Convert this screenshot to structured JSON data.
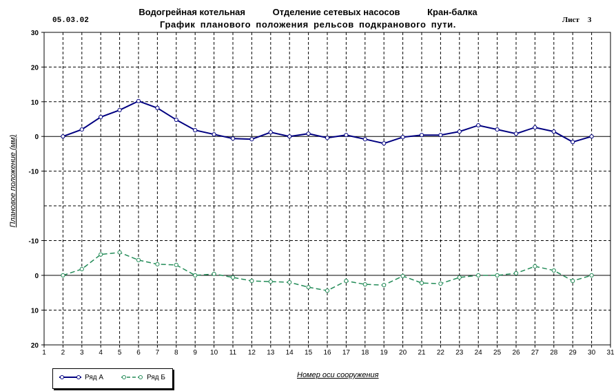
{
  "header": {
    "date": "05.03.02",
    "title_parts": [
      "Водогрейная котельная",
      "Отделение сетевых насосов",
      "Кран-балка"
    ],
    "subtitle": "График планового положения рельсов подкранового пути.",
    "sheet_label": "Лист",
    "sheet_number": "3"
  },
  "chart_data": {
    "type": "line",
    "xlabel": "Номер оси сооружения",
    "ylabel": "Плановое положение (мм)",
    "x_ticks": [
      1,
      2,
      3,
      4,
      5,
      6,
      7,
      8,
      9,
      10,
      11,
      12,
      13,
      14,
      15,
      16,
      17,
      18,
      19,
      20,
      21,
      22,
      23,
      24,
      25,
      26,
      27,
      28,
      29,
      30,
      31
    ],
    "xlim": [
      1,
      31
    ],
    "x": [
      2,
      3,
      4,
      5,
      6,
      7,
      8,
      9,
      10,
      11,
      12,
      13,
      14,
      15,
      16,
      17,
      18,
      19,
      20,
      21,
      22,
      23,
      24,
      25,
      26,
      27,
      28,
      29,
      30
    ],
    "upper_panel": {
      "ylim": [
        -20,
        30
      ],
      "y_ticks": [
        30,
        20,
        10,
        0,
        -10
      ],
      "y_tick_labels": [
        "30",
        "20",
        "10",
        "0",
        "-10"
      ]
    },
    "lower_panel": {
      "ylim": [
        -20,
        20
      ],
      "inverted": true,
      "y_ticks": [
        -10,
        0,
        10,
        20
      ],
      "y_tick_labels": [
        "-10",
        "0",
        "10",
        "20"
      ]
    },
    "grid": true,
    "grid_style": "dashed",
    "series": [
      {
        "name": "Ряд А",
        "panel": "upper",
        "color": "#000080",
        "line_style": "solid",
        "values": [
          0,
          2,
          5.6,
          7.6,
          10.2,
          8.2,
          4.8,
          1.8,
          0.6,
          -0.6,
          -0.8,
          1.2,
          0,
          0.8,
          -0.4,
          0.4,
          -0.8,
          -2,
          -0.2,
          0.4,
          0.4,
          1.4,
          3.2,
          2,
          0.8,
          2.6,
          1.4,
          -1.6,
          0
        ]
      },
      {
        "name": "Ряд Б",
        "panel": "lower",
        "color": "#228b57",
        "line_style": "dashed",
        "values": [
          0,
          -1.8,
          -6,
          -6.6,
          -4.4,
          -3.2,
          -3,
          0,
          -0.4,
          0.6,
          1.6,
          1.8,
          2,
          3.4,
          4.4,
          1.6,
          2.6,
          2.8,
          0.2,
          2.2,
          2.4,
          0.6,
          0,
          0,
          -0.6,
          -2.6,
          -1.4,
          1.6,
          0
        ]
      }
    ]
  },
  "legend": {
    "items": [
      "Ряд А",
      "Ряд Б"
    ]
  }
}
